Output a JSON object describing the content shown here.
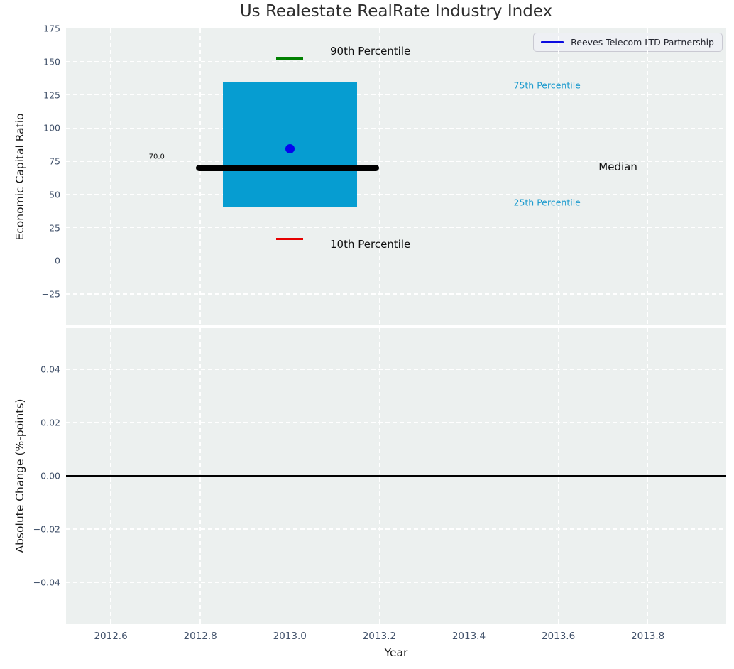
{
  "title": "Us Realestate RealRate Industry Index",
  "legend": {
    "label": "Reeves Telecom LTD Partnership",
    "line_color": "#0b0be0"
  },
  "colors": {
    "figure_background": "#ffffff",
    "axes_background": "#ecf0ef",
    "gridline": "#ffffff",
    "tick_label": "#42526b",
    "axis_label": "#1a1a1a",
    "title": "#2e2e2e",
    "box_fill": "#069dd1",
    "median_line": "#000000",
    "whisker": "#666666",
    "cap_90th": "#008000",
    "cap_10th": "#e60000",
    "mean_dot": "#0404ee",
    "percentile_label": "#1d9bce",
    "zero_line": "#000000"
  },
  "chart_data": [
    {
      "type": "boxplot",
      "title": "Us Realestate RealRate Industry Index",
      "ylabel": "Economic Capital Ratio",
      "xlim": [
        2012.5,
        2013.975
      ],
      "ylim": [
        -48.5,
        175
      ],
      "grid": true,
      "legend_position": "upper right",
      "ytick_values": [
        175,
        150,
        125,
        100,
        75,
        50,
        25,
        0,
        -25
      ],
      "ytick_labels": [
        "175",
        "150",
        "125",
        "100",
        "75",
        "50",
        "25",
        "0",
        "−25"
      ],
      "xtick_values": [
        2012.6,
        2012.8,
        2013.0,
        2013.2,
        2013.4,
        2013.6,
        2013.8
      ],
      "box": {
        "x_center": 2013.0,
        "box_x": [
          2012.85,
          2013.15
        ],
        "median_x": [
          2012.79,
          2013.2
        ],
        "q1": 40,
        "q3": 135,
        "median": 70,
        "whisker_low": 16.5,
        "whisker_high": 152.5,
        "mean_point": {
          "x": 2013.0,
          "y": 84.5
        }
      },
      "annotations": [
        {
          "text": "90th Percentile",
          "x": 2013.09,
          "y": 158,
          "color": "#111111",
          "size": 15
        },
        {
          "text": "10th Percentile",
          "x": 2013.09,
          "y": 12.5,
          "color": "#111111",
          "size": 15
        },
        {
          "text": "75th Percentile",
          "x": 2013.5,
          "y": 132,
          "color": "#1d9bce",
          "size": 12.5
        },
        {
          "text": "25th Percentile",
          "x": 2013.5,
          "y": 44,
          "color": "#1d9bce",
          "size": 12.5
        },
        {
          "text": "Median",
          "x": 2013.69,
          "y": 70.5,
          "color": "#111111",
          "size": 15
        },
        {
          "text": "70.0",
          "x": 2012.685,
          "y": 78,
          "color": "#111111",
          "size": 10
        }
      ]
    },
    {
      "type": "line",
      "ylabel": "Absolute Change (%-points)",
      "xlabel": "Year",
      "xlim": [
        2012.5,
        2013.975
      ],
      "ylim": [
        -0.0555,
        0.0555
      ],
      "grid": true,
      "zero_line": 0.0,
      "ytick_values": [
        0.04,
        0.02,
        0.0,
        -0.02,
        -0.04
      ],
      "ytick_labels": [
        "0.04",
        "0.02",
        "0.00",
        "−0.02",
        "−0.04"
      ],
      "xtick_values": [
        2012.6,
        2012.8,
        2013.0,
        2013.2,
        2013.4,
        2013.6,
        2013.8
      ],
      "xtick_labels": [
        "2012.6",
        "2012.8",
        "2013.0",
        "2013.2",
        "2013.4",
        "2013.6",
        "2013.8"
      ]
    }
  ]
}
